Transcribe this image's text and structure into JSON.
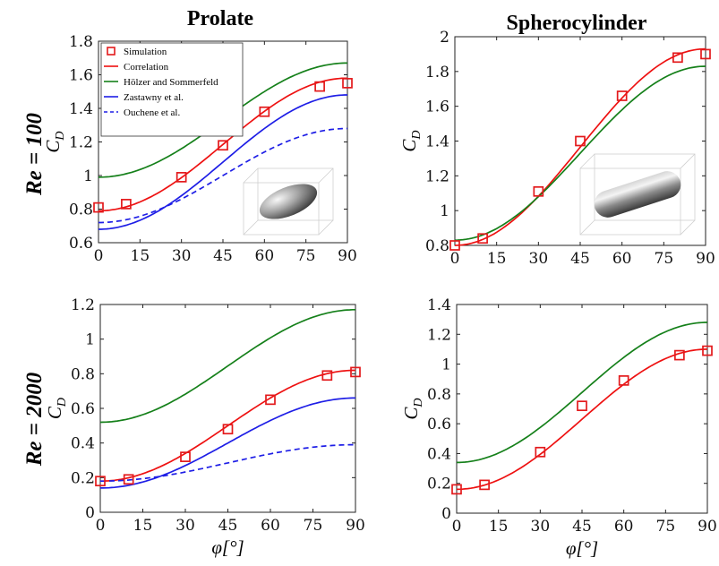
{
  "figure": {
    "col_titles": [
      "Prolate",
      "Spherocylinder"
    ],
    "row_labels": [
      "Re = 100",
      "Re = 2000"
    ]
  },
  "colors": {
    "simulation": "#e31a1c",
    "correlation": "#ee1111",
    "holzer": "#15801a",
    "zastawny": "#1e1ee6",
    "ouchene": "#1e1ee6"
  },
  "chart_data": [
    {
      "id": "prolate-re100",
      "type": "line",
      "title": "",
      "xlabel": "",
      "ylabel": "C_D",
      "xlim": [
        0,
        90
      ],
      "ylim": [
        0.6,
        1.8
      ],
      "xticks": [
        0,
        15,
        30,
        45,
        60,
        75,
        90
      ],
      "yticks": [
        0.6,
        0.8,
        1,
        1.2,
        1.4,
        1.6,
        1.8
      ],
      "ytick_labels": [
        "0.6",
        "0.8",
        "1",
        "1.2",
        "1.4",
        "1.6",
        "1.8"
      ],
      "legend": {
        "position": "top-left"
      },
      "inset": "prolate",
      "series": [
        {
          "name": "Simulation",
          "kind": "markers",
          "color": "#e31a1c",
          "x": [
            0,
            10,
            30,
            45,
            60,
            80,
            90
          ],
          "y": [
            0.81,
            0.83,
            0.99,
            1.18,
            1.38,
            1.53,
            1.55
          ]
        },
        {
          "name": "Correlation",
          "kind": "curve",
          "color": "#ee1111",
          "a": 0.79,
          "b": 1.58
        },
        {
          "name": "Hölzer and Sommerfeld",
          "kind": "curve",
          "color": "#15801a",
          "a": 0.99,
          "b": 1.67
        },
        {
          "name": "Zastawny et al.",
          "kind": "curve",
          "color": "#1e1ee6",
          "a": 0.68,
          "b": 1.48
        },
        {
          "name": "Ouchene et al.",
          "kind": "curve",
          "color": "#1e1ee6",
          "dashed": true,
          "a": 0.72,
          "b": 1.28
        }
      ]
    },
    {
      "id": "spherocylinder-re100",
      "type": "line",
      "title": "",
      "xlabel": "",
      "ylabel": "C_D",
      "xlim": [
        0,
        90
      ],
      "ylim": [
        0.8,
        2.0
      ],
      "xticks": [
        0,
        15,
        30,
        45,
        60,
        75,
        90
      ],
      "yticks": [
        0.8,
        1,
        1.2,
        1.4,
        1.6,
        1.8,
        2
      ],
      "ytick_labels": [
        "0.8",
        "1",
        "1.2",
        "1.4",
        "1.6",
        "1.8",
        "2"
      ],
      "inset": "spherocylinder",
      "series": [
        {
          "kind": "markers",
          "color": "#e31a1c",
          "x": [
            0,
            10,
            30,
            45,
            60,
            80,
            90
          ],
          "y": [
            0.8,
            0.84,
            1.11,
            1.4,
            1.66,
            1.88,
            1.9
          ]
        },
        {
          "kind": "curve",
          "color": "#ee1111",
          "a": 0.8,
          "b": 1.93
        },
        {
          "kind": "curve",
          "color": "#15801a",
          "a": 0.83,
          "b": 1.83
        }
      ]
    },
    {
      "id": "prolate-re2000",
      "type": "line",
      "title": "",
      "xlabel": "φ[°]",
      "ylabel": "C_D",
      "xlim": [
        0,
        90
      ],
      "ylim": [
        0,
        1.2
      ],
      "xticks": [
        0,
        15,
        30,
        45,
        60,
        75,
        90
      ],
      "yticks": [
        0,
        0.2,
        0.4,
        0.6,
        0.8,
        1,
        1.2
      ],
      "ytick_labels": [
        "0",
        "0.2",
        "0.4",
        "0.6",
        "0.8",
        "1",
        "1.2"
      ],
      "series": [
        {
          "kind": "markers",
          "color": "#e31a1c",
          "x": [
            0,
            10,
            30,
            45,
            60,
            80,
            90
          ],
          "y": [
            0.18,
            0.19,
            0.32,
            0.48,
            0.65,
            0.79,
            0.81
          ]
        },
        {
          "kind": "curve",
          "color": "#ee1111",
          "a": 0.18,
          "b": 0.82
        },
        {
          "kind": "curve",
          "color": "#15801a",
          "a": 0.52,
          "b": 1.17
        },
        {
          "kind": "curve",
          "color": "#1e1ee6",
          "a": 0.14,
          "b": 0.66
        },
        {
          "kind": "curve",
          "color": "#1e1ee6",
          "dashed": true,
          "a": 0.18,
          "b": 0.39
        }
      ]
    },
    {
      "id": "spherocylinder-re2000",
      "type": "line",
      "title": "",
      "xlabel": "φ[°]",
      "ylabel": "C_D",
      "xlim": [
        0,
        90
      ],
      "ylim": [
        0,
        1.4
      ],
      "xticks": [
        0,
        15,
        30,
        45,
        60,
        75,
        90
      ],
      "yticks": [
        0,
        0.2,
        0.4,
        0.6,
        0.8,
        1,
        1.2,
        1.4
      ],
      "ytick_labels": [
        "0",
        "0.2",
        "0.4",
        "0.6",
        "0.8",
        "1",
        "1.2",
        "1.4"
      ],
      "series": [
        {
          "kind": "markers",
          "color": "#e31a1c",
          "x": [
            0,
            10,
            30,
            45,
            60,
            80,
            90
          ],
          "y": [
            0.16,
            0.19,
            0.41,
            0.72,
            0.89,
            1.06,
            1.09
          ]
        },
        {
          "kind": "curve",
          "color": "#ee1111",
          "a": 0.16,
          "b": 1.1
        },
        {
          "kind": "curve",
          "color": "#15801a",
          "a": 0.34,
          "b": 1.28
        }
      ]
    }
  ]
}
